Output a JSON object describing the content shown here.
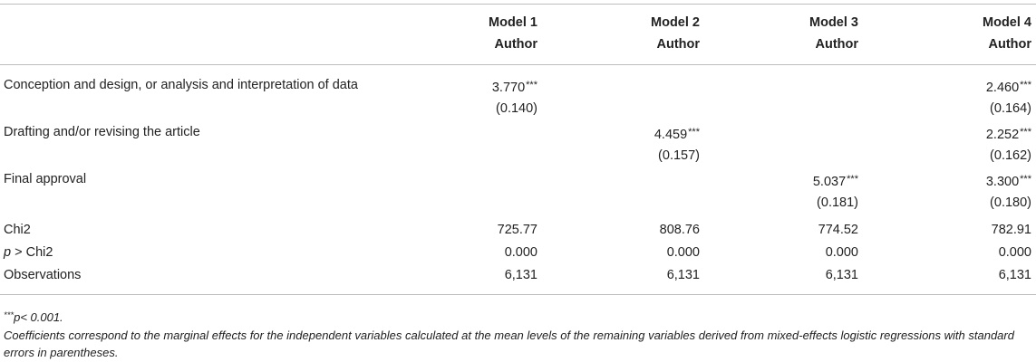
{
  "header": {
    "models": [
      "Model 1",
      "Model 2",
      "Model 3",
      "Model 4"
    ],
    "sublabel": "Author"
  },
  "rows": [
    {
      "label": "Conception and design, or analysis and interpretation of data",
      "coef": [
        "3.770",
        "",
        "",
        "2.460"
      ],
      "sig": [
        "***",
        "",
        "",
        "***"
      ],
      "se": [
        "(0.140)",
        "",
        "",
        "(0.164)"
      ]
    },
    {
      "label": "Drafting and/or revising the article",
      "coef": [
        "",
        "4.459",
        "",
        "2.252"
      ],
      "sig": [
        "",
        "***",
        "",
        "***"
      ],
      "se": [
        "",
        "(0.157)",
        "",
        "(0.162)"
      ]
    },
    {
      "label": "Final approval",
      "coef": [
        "",
        "",
        "5.037",
        "3.300"
      ],
      "sig": [
        "",
        "",
        "***",
        "***"
      ],
      "se": [
        "",
        "",
        "(0.181)",
        "(0.180)"
      ]
    }
  ],
  "stats": [
    {
      "label": "Chi2",
      "values": [
        "725.77",
        "808.76",
        "774.52",
        "782.91"
      ]
    },
    {
      "label_italic": "p",
      "label_rest": " > Chi2",
      "values": [
        "0.000",
        "0.000",
        "0.000",
        "0.000"
      ]
    },
    {
      "label": "Observations",
      "values": [
        "6,131",
        "6,131",
        "6,131",
        "6,131"
      ]
    }
  ],
  "notes": {
    "sig_marker": "***",
    "sig_text": "p< 0.001.",
    "description": "Coefficients correspond to the marginal effects for the independent variables calculated at the mean levels of the remaining variables derived from mixed-effects logistic regressions with standard errors in parentheses."
  }
}
